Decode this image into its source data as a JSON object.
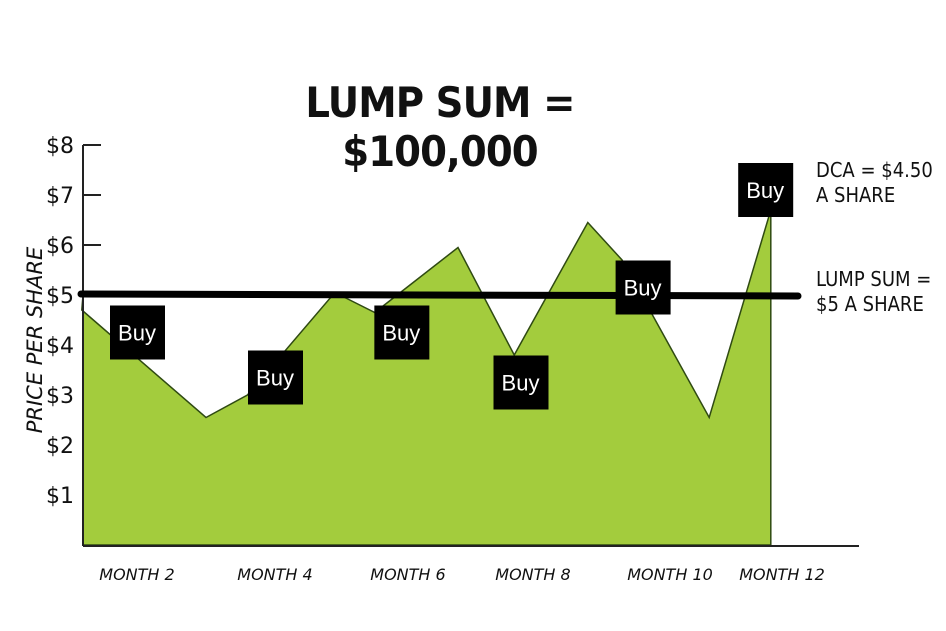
{
  "chart_data": {
    "type": "area",
    "title": "LUMP SUM = $100,000",
    "ylabel": "PRICE PER SHARE",
    "xlabel": "",
    "ylim": [
      0,
      8
    ],
    "y_ticks": [
      "$1",
      "$2",
      "$3",
      "$4",
      "$5",
      "$6",
      "$7",
      "$8"
    ],
    "x_ticks": [
      "MONTH 2",
      "MONTH 4",
      "MONTH 6",
      "MONTH 8",
      "MONTH 10",
      "MONTH 12"
    ],
    "x_tick_months": [
      2,
      4,
      6,
      8,
      10,
      12
    ],
    "grid": false,
    "series": [
      {
        "points": [
          [
            0.4,
            5.0
          ],
          [
            1.2,
            4.7
          ],
          [
            3.0,
            2.55
          ],
          [
            3.6,
            3.0
          ],
          [
            4.9,
            5.05
          ],
          [
            5.5,
            4.65
          ],
          [
            6.8,
            5.95
          ],
          [
            7.7,
            3.8
          ],
          [
            8.8,
            6.45
          ],
          [
            9.3,
            5.7
          ],
          [
            10.7,
            2.55
          ],
          [
            11.8,
            6.7
          ]
        ],
        "fill": "#a3cc3d",
        "stroke": "#2f4a12"
      }
    ],
    "reference_line": {
      "value": 5,
      "color": "#000000"
    },
    "buy_markers": {
      "label": "Buy",
      "positions": [
        [
          2.0,
          4.25
        ],
        [
          4.0,
          3.35
        ],
        [
          5.9,
          4.25
        ],
        [
          7.8,
          3.25
        ],
        [
          9.6,
          5.15
        ],
        [
          11.7,
          7.1
        ]
      ]
    },
    "annotations": {
      "dca": [
        "DCA = $4.50",
        "A SHARE"
      ],
      "lump": [
        "LUMP SUM =",
        "$5 A SHARE"
      ]
    }
  }
}
